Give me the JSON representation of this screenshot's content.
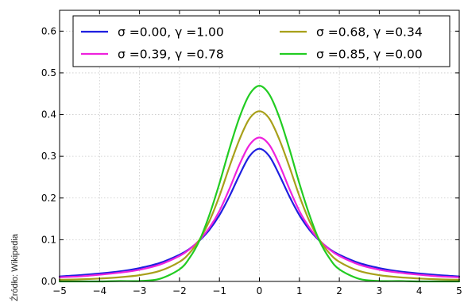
{
  "source_credit": "Źródło: Wikipedia",
  "chart_data": {
    "type": "line",
    "title": "",
    "xlabel": "",
    "ylabel": "",
    "xlim": [
      -5,
      5
    ],
    "ylim": [
      0,
      0.65
    ],
    "xticks": [
      -5,
      -4,
      -3,
      -2,
      -1,
      0,
      1,
      2,
      3,
      4,
      5
    ],
    "yticks": [
      0.0,
      0.1,
      0.2,
      0.3,
      0.4,
      0.5,
      0.6
    ],
    "xtick_labels": [
      "−5",
      "−4",
      "−3",
      "−2",
      "−1",
      "0",
      "1",
      "2",
      "3",
      "4",
      "5"
    ],
    "ytick_labels": [
      "0.0",
      "0.1",
      "0.2",
      "0.3",
      "0.4",
      "0.5",
      "0.6"
    ],
    "grid": true,
    "legend_placement": "upper",
    "x": [
      -5,
      -4.5,
      -4,
      -3.5,
      -3,
      -2.5,
      -2,
      -1.75,
      -1.5,
      -1.25,
      -1,
      -0.75,
      -0.5,
      -0.25,
      0,
      0.25,
      0.5,
      0.75,
      1,
      1.25,
      1.5,
      1.75,
      2,
      2.5,
      3,
      3.5,
      4,
      4.5,
      5
    ],
    "series": [
      {
        "name": "σ =0.00, γ =1.00",
        "color": "#1f1fe0",
        "values": [
          0.012,
          0.015,
          0.019,
          0.024,
          0.032,
          0.044,
          0.064,
          0.078,
          0.098,
          0.124,
          0.159,
          0.204,
          0.255,
          0.3,
          0.318,
          0.3,
          0.255,
          0.204,
          0.159,
          0.124,
          0.098,
          0.078,
          0.064,
          0.044,
          0.032,
          0.024,
          0.019,
          0.015,
          0.012
        ]
      },
      {
        "name": "σ =0.39, γ =0.78",
        "color": "#ee22dd",
        "values": [
          0.01,
          0.012,
          0.016,
          0.021,
          0.028,
          0.04,
          0.061,
          0.077,
          0.099,
          0.129,
          0.169,
          0.222,
          0.28,
          0.327,
          0.345,
          0.327,
          0.28,
          0.222,
          0.169,
          0.129,
          0.099,
          0.077,
          0.061,
          0.04,
          0.028,
          0.021,
          0.016,
          0.012,
          0.01
        ]
      },
      {
        "name": "σ =0.68, γ =0.34",
        "color": "#a8a01a",
        "values": [
          0.004,
          0.005,
          0.007,
          0.01,
          0.015,
          0.025,
          0.047,
          0.068,
          0.1,
          0.145,
          0.205,
          0.275,
          0.34,
          0.39,
          0.408,
          0.39,
          0.34,
          0.275,
          0.205,
          0.145,
          0.1,
          0.068,
          0.047,
          0.025,
          0.015,
          0.01,
          0.007,
          0.005,
          0.004
        ]
      },
      {
        "name": "σ =0.85, γ =0.00",
        "color": "#22cc22",
        "values": [
          0.0,
          0.0,
          0.0,
          0.001,
          0.001,
          0.006,
          0.029,
          0.056,
          0.098,
          0.16,
          0.235,
          0.318,
          0.393,
          0.448,
          0.469,
          0.448,
          0.393,
          0.318,
          0.235,
          0.16,
          0.098,
          0.056,
          0.029,
          0.006,
          0.001,
          0.001,
          0.0,
          0.0,
          0.0
        ]
      }
    ]
  }
}
